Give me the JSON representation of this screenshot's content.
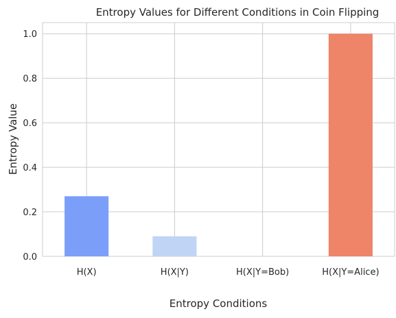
{
  "chart_data": {
    "type": "bar",
    "title": "Entropy Values for Different Conditions in Coin Flipping",
    "xlabel": "Entropy Conditions",
    "ylabel": "Entropy Value",
    "categories": [
      "H(X)",
      "H(X|Y)",
      "H(X|Y=Bob)",
      "H(X|Y=Alice)"
    ],
    "values": [
      0.27,
      0.09,
      0.0,
      1.0
    ],
    "colors": [
      "#7b9ff9",
      "#c0d4f5",
      "#f2cbb7",
      "#ee8468"
    ],
    "ylim": [
      0,
      1.05
    ],
    "yticks": [
      0.0,
      0.2,
      0.4,
      0.6,
      0.8,
      1.0
    ],
    "ytick_labels": [
      "0.0",
      "0.2",
      "0.4",
      "0.6",
      "0.8",
      "1.0"
    ],
    "grid": true,
    "legend": "none"
  }
}
